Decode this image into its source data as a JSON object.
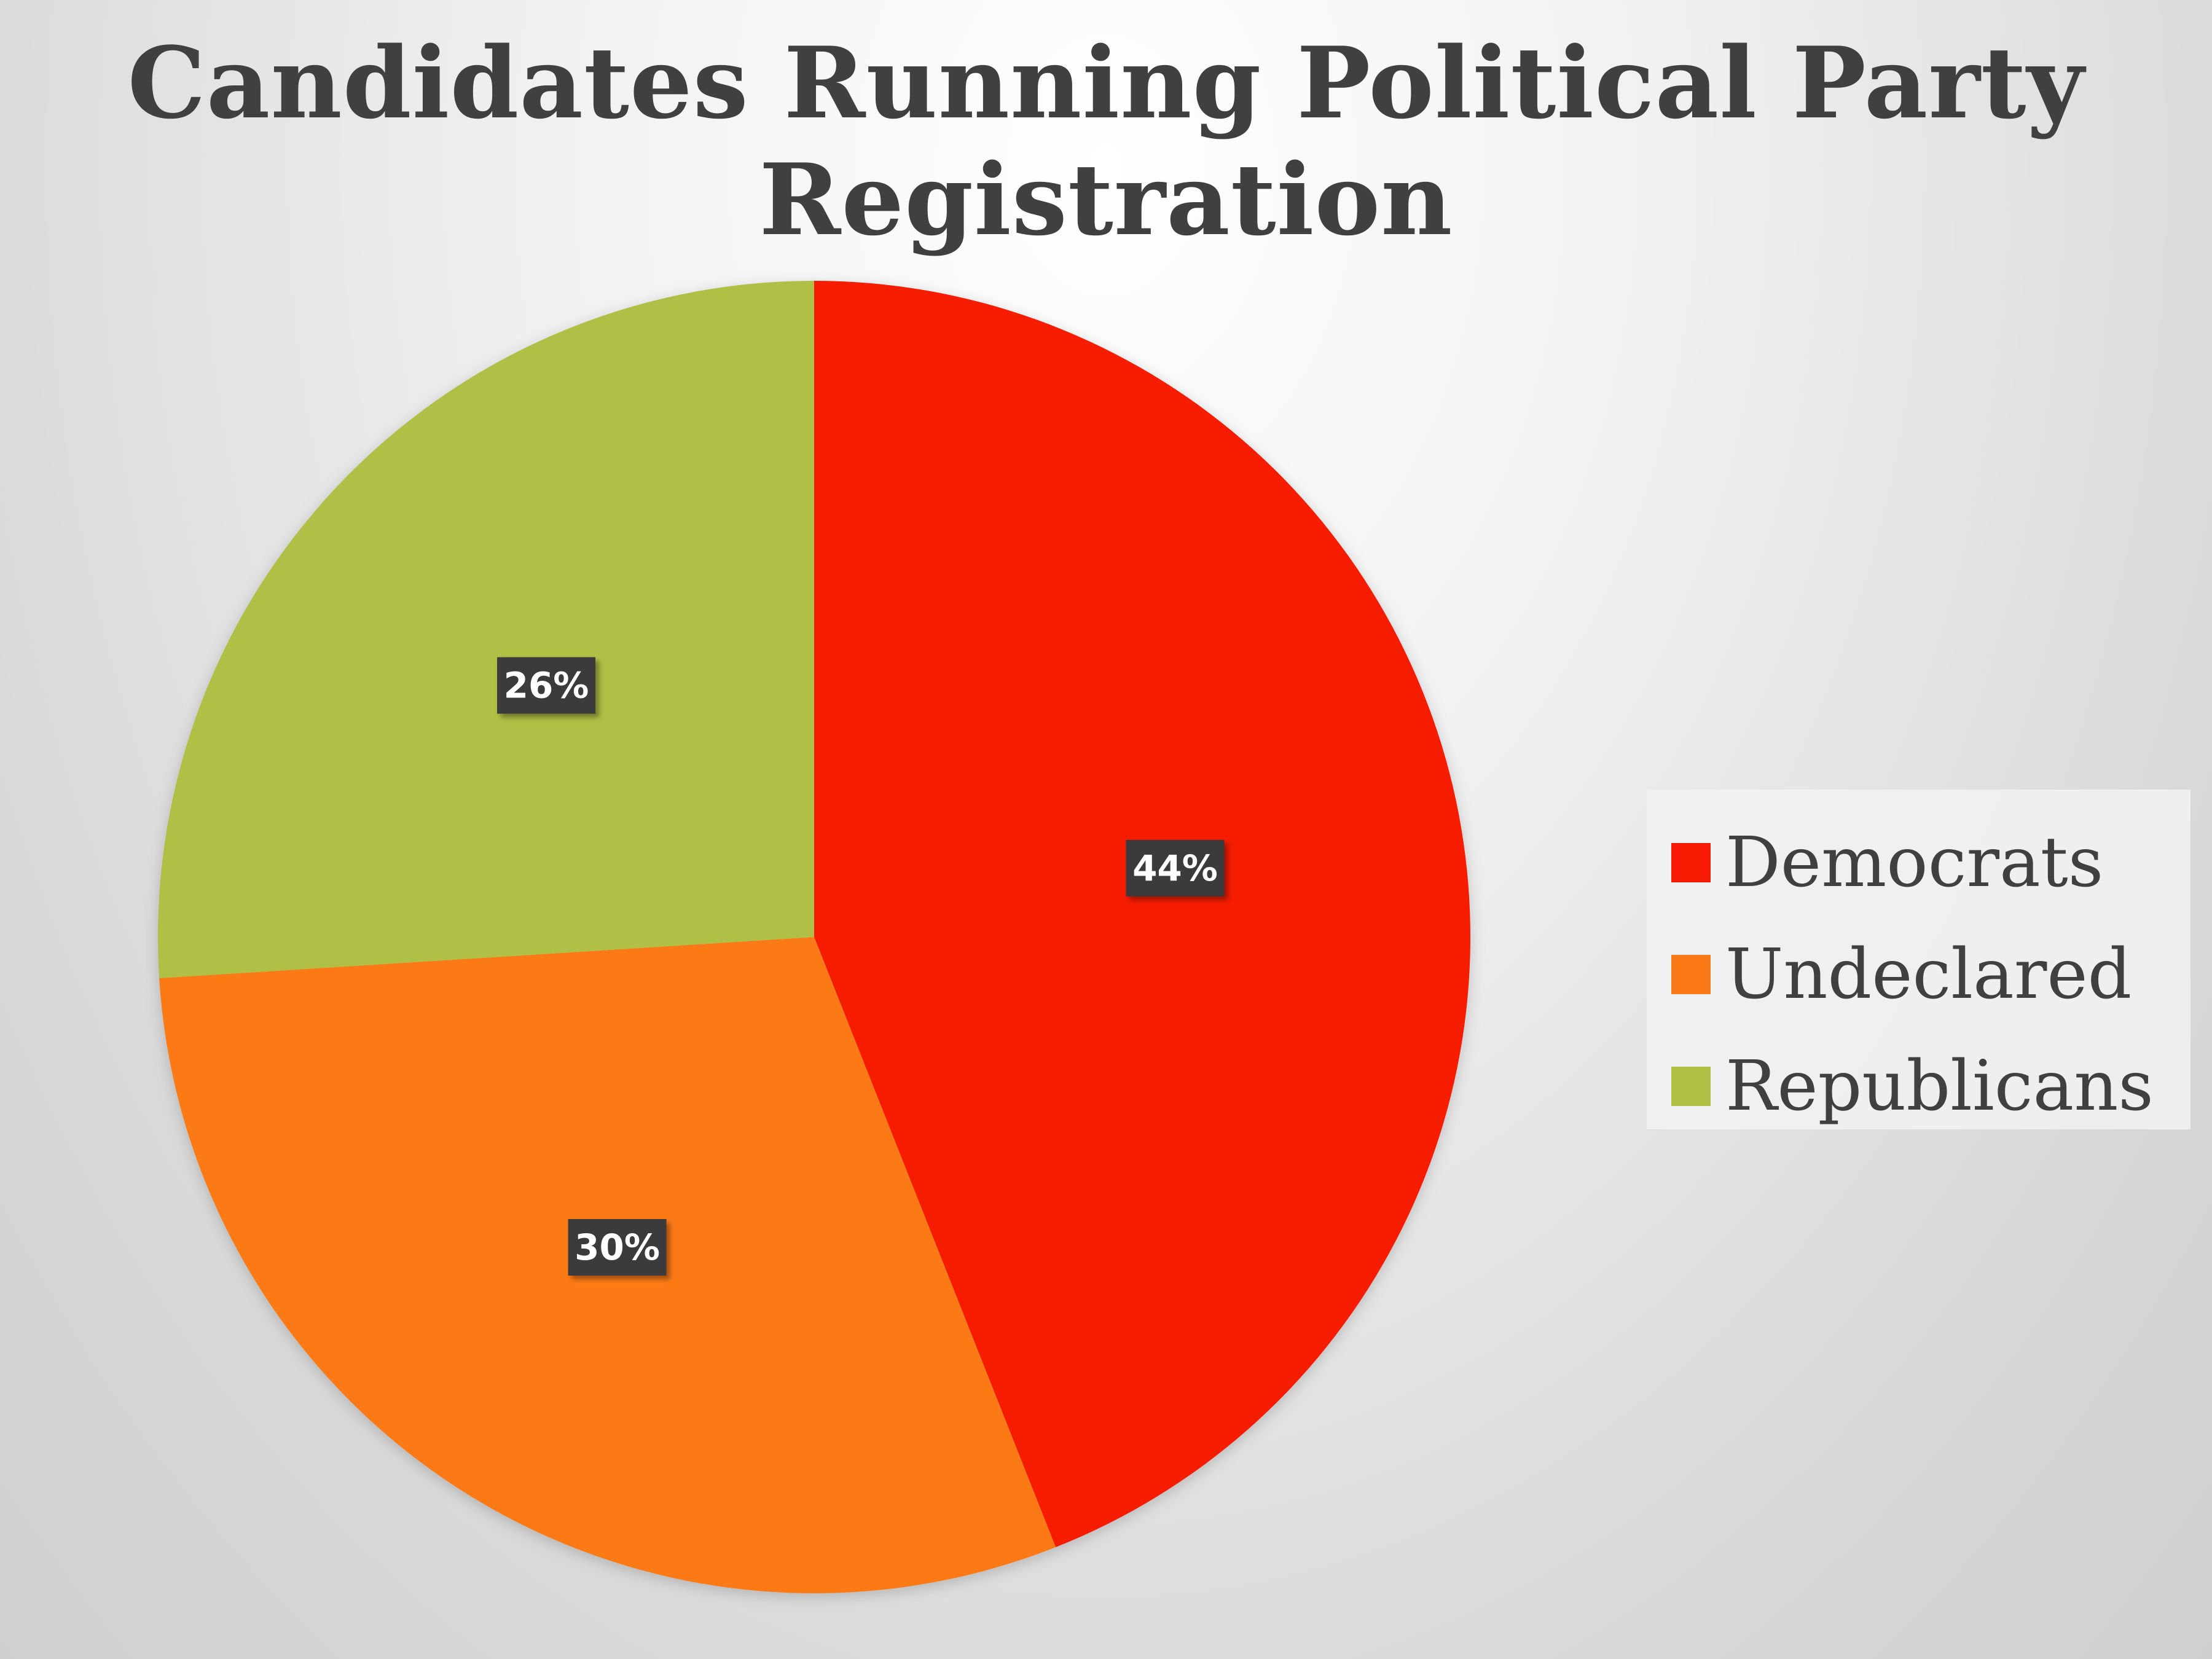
{
  "chart_data": {
    "type": "pie",
    "title": "Candidates Running Political Party Registration",
    "title_lines": [
      "Candidates Running Political Party",
      "Registration"
    ],
    "start_angle_deg": 0,
    "direction": "clockwise",
    "slices": [
      {
        "label": "Democrats",
        "value": 44,
        "display": "44%",
        "color": "#f61b02"
      },
      {
        "label": "Undeclared",
        "value": 30,
        "display": "30%",
        "color": "#fb7a17"
      },
      {
        "label": "Republicans",
        "value": 26,
        "display": "26%",
        "color": "#b0bf44"
      }
    ],
    "legend": {
      "position": "right",
      "entries": [
        "Democrats",
        "Undeclared",
        "Republicans"
      ]
    },
    "data_label_style": {
      "background": "#3a3a3a",
      "color": "#ffffff"
    }
  }
}
